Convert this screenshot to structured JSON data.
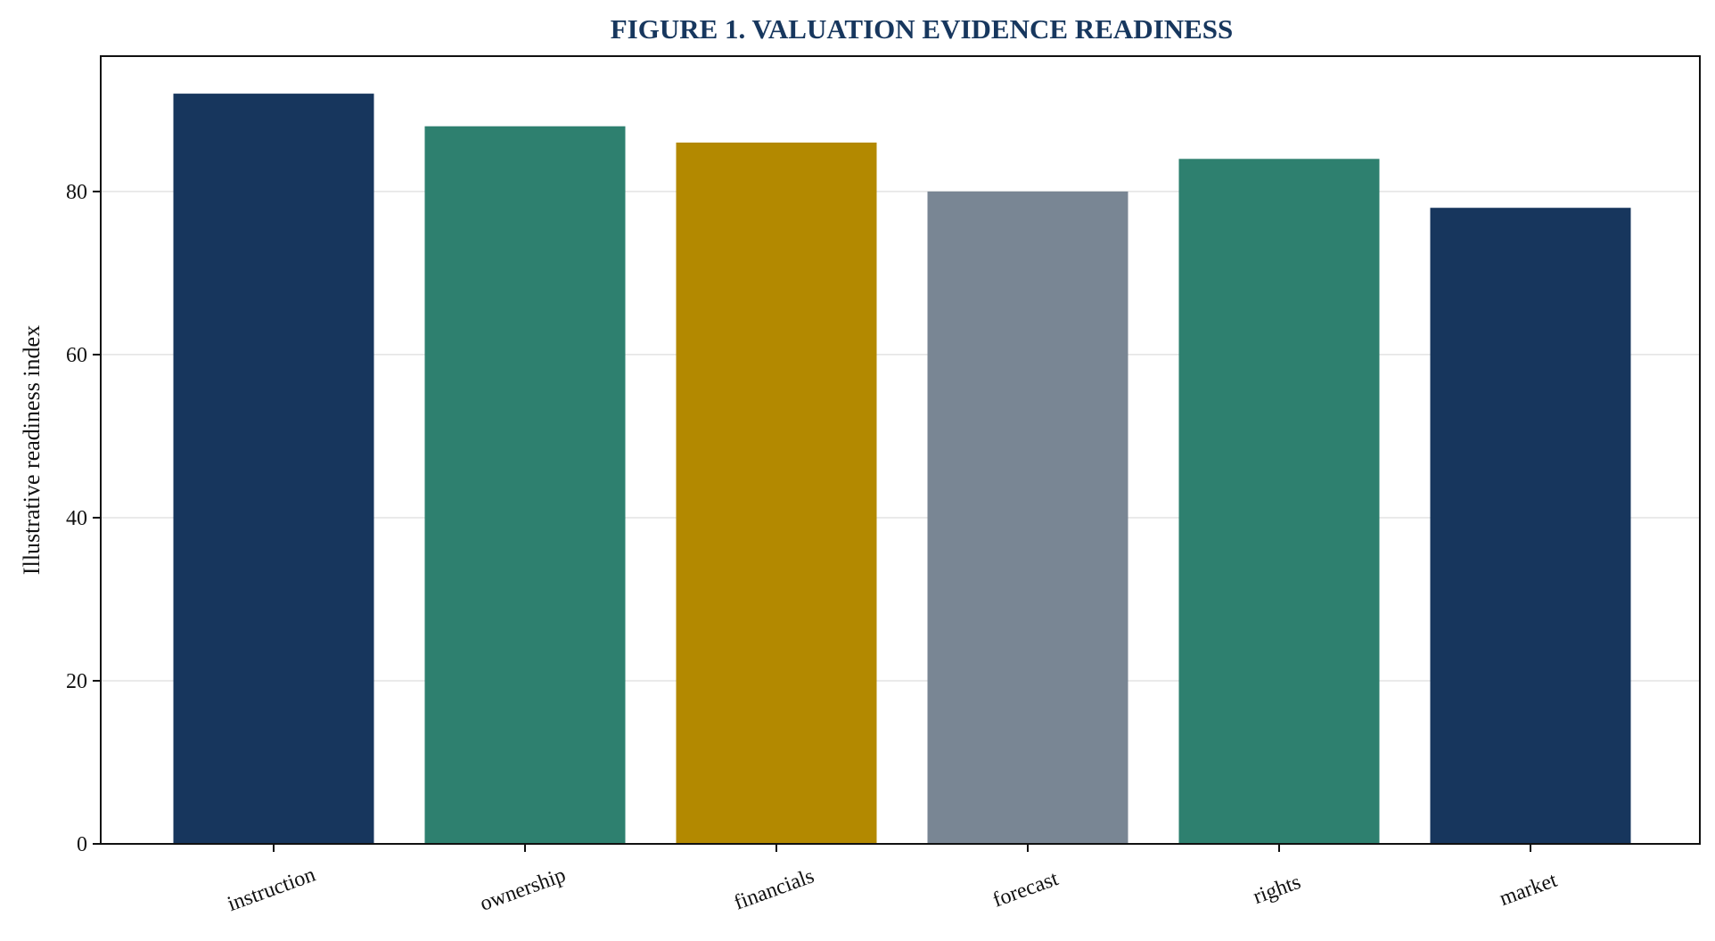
{
  "chart_data": {
    "type": "bar",
    "title": "FIGURE 1. VALUATION EVIDENCE READINESS",
    "xlabel": "",
    "ylabel": "Illustrative readiness index",
    "categories": [
      "instruction",
      "ownership",
      "financials",
      "forecast",
      "rights",
      "market"
    ],
    "values": [
      92,
      88,
      86,
      80,
      84,
      78
    ],
    "colors": [
      "#17365d",
      "#2e806f",
      "#b38900",
      "#798694",
      "#2e806f",
      "#17365d"
    ],
    "ylim": [
      0,
      96.6
    ],
    "yticks": [
      0,
      20,
      40,
      60,
      80
    ],
    "grid": "horizontal",
    "legend": "none",
    "title_color": "#17375e"
  }
}
